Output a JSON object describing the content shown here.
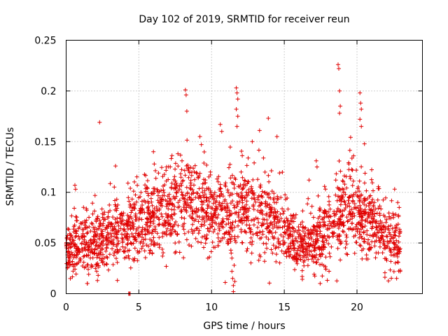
{
  "chart_data": {
    "type": "scatter",
    "title": "Day 102 of 2019, SRMTID for receiver reun",
    "xlabel": "GPS time / hours",
    "ylabel": "SRMTID / TECUs",
    "xlim": [
      0,
      24.5
    ],
    "ylim": [
      0,
      0.25
    ],
    "x_ticks": [
      "0",
      "5",
      "10",
      "15",
      "20"
    ],
    "y_ticks": [
      "0",
      "0.05",
      "0.1",
      "0.15",
      "0.2",
      "0.25"
    ],
    "grid": true,
    "marker": "plus",
    "marker_color": "#e00000",
    "trend_profile": [
      [
        0.0,
        0.045,
        0.012
      ],
      [
        1.0,
        0.048,
        0.014
      ],
      [
        2.0,
        0.05,
        0.016
      ],
      [
        3.0,
        0.058,
        0.016
      ],
      [
        4.0,
        0.06,
        0.016
      ],
      [
        5.0,
        0.068,
        0.018
      ],
      [
        6.0,
        0.078,
        0.02
      ],
      [
        7.0,
        0.085,
        0.022
      ],
      [
        8.0,
        0.092,
        0.024
      ],
      [
        9.0,
        0.093,
        0.022
      ],
      [
        10.0,
        0.08,
        0.02
      ],
      [
        11.0,
        0.075,
        0.02
      ],
      [
        12.0,
        0.085,
        0.022
      ],
      [
        13.0,
        0.085,
        0.02
      ],
      [
        14.0,
        0.075,
        0.018
      ],
      [
        15.0,
        0.058,
        0.015
      ],
      [
        16.0,
        0.045,
        0.012
      ],
      [
        17.0,
        0.05,
        0.014
      ],
      [
        18.0,
        0.062,
        0.018
      ],
      [
        19.0,
        0.078,
        0.022
      ],
      [
        20.0,
        0.085,
        0.022
      ],
      [
        21.0,
        0.068,
        0.018
      ],
      [
        22.0,
        0.055,
        0.015
      ],
      [
        23.0,
        0.05,
        0.014
      ]
    ],
    "point_count": 2300,
    "random_seed": 102,
    "notable_points": [
      {
        "x": 18.7,
        "y": 0.226
      },
      {
        "x": 18.75,
        "y": 0.222
      },
      {
        "x": 18.8,
        "y": 0.2
      },
      {
        "x": 18.85,
        "y": 0.185
      },
      {
        "x": 18.8,
        "y": 0.178
      },
      {
        "x": 8.2,
        "y": 0.201
      },
      {
        "x": 8.25,
        "y": 0.196
      },
      {
        "x": 8.3,
        "y": 0.18
      },
      {
        "x": 11.7,
        "y": 0.203
      },
      {
        "x": 11.75,
        "y": 0.198
      },
      {
        "x": 11.8,
        "y": 0.192
      },
      {
        "x": 11.7,
        "y": 0.182
      },
      {
        "x": 11.8,
        "y": 0.175
      },
      {
        "x": 11.75,
        "y": 0.165
      },
      {
        "x": 20.2,
        "y": 0.198
      },
      {
        "x": 20.25,
        "y": 0.188
      },
      {
        "x": 20.3,
        "y": 0.182
      },
      {
        "x": 20.2,
        "y": 0.172
      },
      {
        "x": 20.3,
        "y": 0.165
      },
      {
        "x": 2.3,
        "y": 0.169
      },
      {
        "x": 3.4,
        "y": 0.126
      },
      {
        "x": 13.9,
        "y": 0.173
      },
      {
        "x": 13.3,
        "y": 0.161
      },
      {
        "x": 10.6,
        "y": 0.167
      },
      {
        "x": 10.7,
        "y": 0.16
      },
      {
        "x": 14.5,
        "y": 0.155
      },
      {
        "x": 12.8,
        "y": 0.15
      },
      {
        "x": 11.5,
        "y": 0.002
      },
      {
        "x": 11.5,
        "y": 0.008
      },
      {
        "x": 11.45,
        "y": 0.015
      },
      {
        "x": 11.4,
        "y": 0.022
      },
      {
        "x": 11.55,
        "y": 0.028
      },
      {
        "x": 11.4,
        "y": 0.035
      },
      {
        "x": 11.6,
        "y": 0.012
      },
      {
        "x": 11.35,
        "y": 0.04
      },
      {
        "x": 2.15,
        "y": 0.013
      },
      {
        "x": 2.2,
        "y": 0.018
      },
      {
        "x": 2.1,
        "y": 0.022
      },
      {
        "x": 4.3,
        "y": 0.0
      },
      {
        "x": 4.35,
        "y": 0.0
      },
      {
        "x": 4.4,
        "y": 0.0
      },
      {
        "x": 0.6,
        "y": 0.107
      },
      {
        "x": 0.65,
        "y": 0.103
      },
      {
        "x": 17.2,
        "y": 0.131
      },
      {
        "x": 17.25,
        "y": 0.125
      },
      {
        "x": 16.7,
        "y": 0.112
      },
      {
        "x": 22.8,
        "y": 0.09
      },
      {
        "x": 22.9,
        "y": 0.085
      },
      {
        "x": 6.0,
        "y": 0.14
      },
      {
        "x": 9.3,
        "y": 0.147
      },
      {
        "x": 9.2,
        "y": 0.155
      }
    ]
  }
}
